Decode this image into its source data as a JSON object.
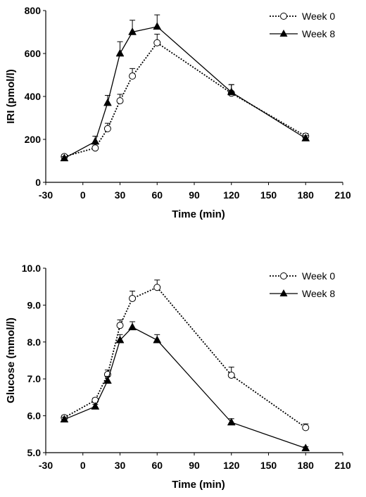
{
  "chart_data": [
    {
      "type": "line",
      "title": "",
      "xlabel": "Time (min)",
      "ylabel": "IRI (pmol/l)",
      "xlim": [
        -30,
        210
      ],
      "ylim": [
        0,
        800
      ],
      "xticks": [
        "-30",
        "0",
        "30",
        "60",
        "90",
        "120",
        "150",
        "180",
        "210"
      ],
      "yticks": [
        "0",
        "200",
        "400",
        "600",
        "800"
      ],
      "grid": false,
      "legend_position": "top-right",
      "series": [
        {
          "name": "Week 0",
          "marker": "open-circle",
          "line_style": "dotted",
          "x": [
            -15,
            10,
            20,
            30,
            40,
            60,
            120,
            180
          ],
          "y": [
            120,
            160,
            250,
            380,
            495,
            650,
            415,
            215
          ],
          "error": [
            10,
            18,
            25,
            30,
            35,
            40,
            40,
            12
          ]
        },
        {
          "name": "Week 8",
          "marker": "filled-triangle",
          "line_style": "solid",
          "x": [
            -15,
            10,
            20,
            30,
            40,
            60,
            120,
            180
          ],
          "y": [
            112,
            190,
            370,
            600,
            700,
            725,
            420,
            205
          ],
          "error": [
            8,
            25,
            35,
            55,
            55,
            55,
            35,
            12
          ]
        }
      ]
    },
    {
      "type": "line",
      "title": "",
      "xlabel": "Time (min)",
      "ylabel": "Glucose (mmol/l)",
      "xlim": [
        -30,
        210
      ],
      "ylim": [
        5.0,
        10.0
      ],
      "xticks": [
        "-30",
        "0",
        "30",
        "60",
        "90",
        "120",
        "150",
        "180",
        "210"
      ],
      "yticks": [
        "5.0",
        "6.0",
        "7.0",
        "8.0",
        "9.0",
        "10.0"
      ],
      "grid": false,
      "legend_position": "top-right",
      "series": [
        {
          "name": "Week 0",
          "marker": "open-circle",
          "line_style": "dotted",
          "x": [
            -15,
            10,
            20,
            30,
            40,
            60,
            120,
            180
          ],
          "y": [
            5.95,
            6.42,
            7.12,
            8.45,
            9.18,
            9.48,
            7.1,
            5.68
          ],
          "error": [
            0.06,
            0.06,
            0.12,
            0.15,
            0.2,
            0.2,
            0.22,
            0.1
          ]
        },
        {
          "name": "Week 8",
          "marker": "filled-triangle",
          "line_style": "solid",
          "x": [
            -15,
            10,
            20,
            30,
            40,
            60,
            120,
            180
          ],
          "y": [
            5.9,
            6.25,
            6.95,
            8.05,
            8.4,
            8.05,
            5.82,
            5.12
          ],
          "error": [
            0.06,
            0.06,
            0.12,
            0.15,
            0.15,
            0.15,
            0.1,
            0.04
          ]
        }
      ]
    }
  ]
}
